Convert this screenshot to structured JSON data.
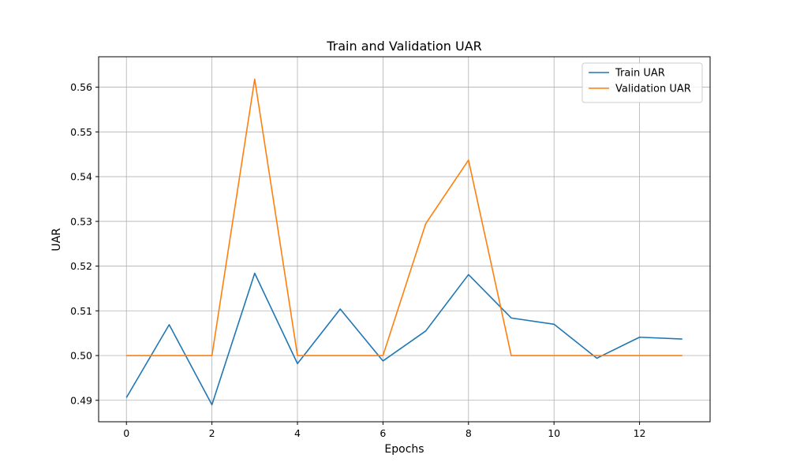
{
  "chart_data": {
    "type": "line",
    "title": "Train and Validation UAR",
    "xlabel": "Epochs",
    "ylabel": "UAR",
    "x": [
      0,
      1,
      2,
      3,
      4,
      5,
      6,
      7,
      8,
      9,
      10,
      11,
      12,
      13
    ],
    "xlim": [
      -0.65,
      13.65
    ],
    "ylim": [
      0.4852,
      0.5668
    ],
    "x_ticks": [
      0,
      2,
      4,
      6,
      8,
      10,
      12
    ],
    "x_tick_labels": [
      "0",
      "2",
      "4",
      "6",
      "8",
      "10",
      "12"
    ],
    "y_ticks": [
      0.49,
      0.5,
      0.51,
      0.52,
      0.53,
      0.54,
      0.55,
      0.56
    ],
    "y_tick_labels": [
      "0.49",
      "0.50",
      "0.51",
      "0.52",
      "0.53",
      "0.54",
      "0.55",
      "0.56"
    ],
    "grid": true,
    "legend_position": "top-right",
    "series": [
      {
        "name": "Train UAR",
        "color": "#1f77b4",
        "values": [
          0.4906,
          0.5069,
          0.489,
          0.5184,
          0.4982,
          0.5104,
          0.4988,
          0.5055,
          0.5181,
          0.5084,
          0.507,
          0.4994,
          0.5041,
          0.5037
        ]
      },
      {
        "name": "Validation UAR",
        "color": "#ff7f0e",
        "values": [
          0.5,
          0.5,
          0.5,
          0.5618,
          0.5,
          0.5,
          0.5,
          0.5295,
          0.5437,
          0.5,
          0.5,
          0.5,
          0.5,
          0.5
        ]
      }
    ]
  }
}
